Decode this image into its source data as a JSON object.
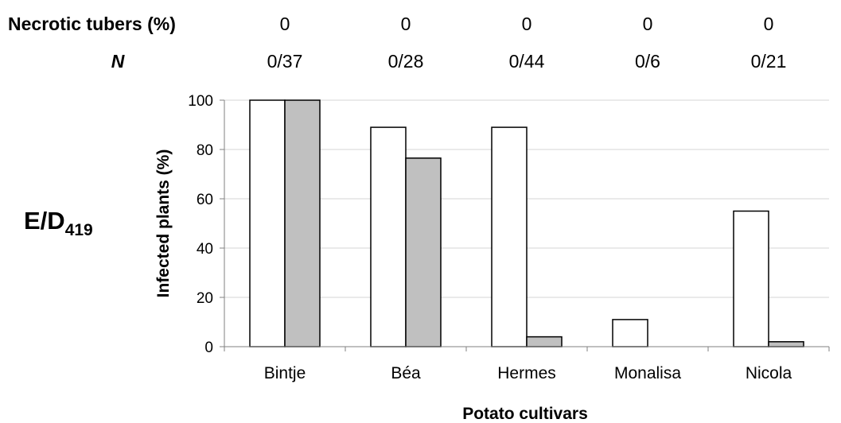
{
  "panel_label": {
    "main": "E/D",
    "subscript": "419"
  },
  "header_rows": [
    {
      "label": "Necrotic tubers (%)",
      "italic": false,
      "values": [
        "0",
        "0",
        "0",
        "0",
        "0"
      ]
    },
    {
      "label": "N",
      "italic": true,
      "values": [
        "0/37",
        "0/28",
        "0/44",
        "0/6",
        "0/21"
      ]
    }
  ],
  "chart_data": {
    "type": "bar",
    "categories": [
      "Bintje",
      "Béa",
      "Hermes",
      "Monalisa",
      "Nicola"
    ],
    "series": [
      {
        "values": [
          100,
          89,
          89,
          11,
          55
        ],
        "color": "#ffffff"
      },
      {
        "values": [
          100,
          76.5,
          4,
          0,
          2
        ],
        "color": "#c0c0c0"
      }
    ],
    "xlabel": "Potato cultivars",
    "ylabel": "Infected plants (%)",
    "ylim": [
      0,
      100
    ],
    "yticks": [
      0,
      20,
      40,
      60,
      80,
      100
    ],
    "grid": true
  }
}
